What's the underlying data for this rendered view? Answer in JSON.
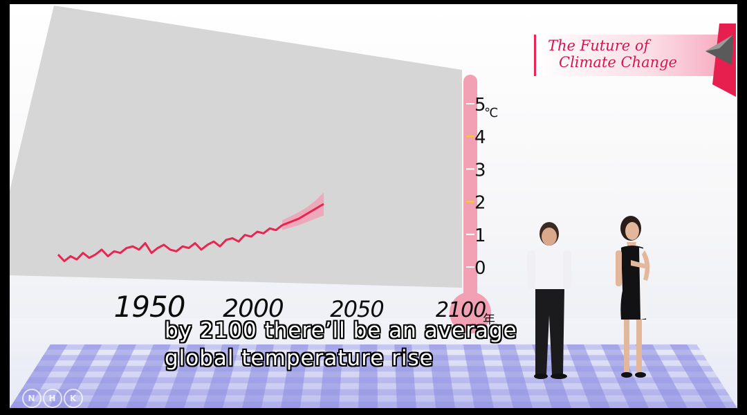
{
  "banner": {
    "title_line1": "The Future of",
    "title_line2": "Climate Change"
  },
  "subtitle": {
    "line1": "by 2100 there’ll be an average",
    "line2": "global temperature rise"
  },
  "logo": {
    "letters": [
      "N",
      "H",
      "K"
    ]
  },
  "colors": {
    "series": "#e8244f",
    "band": "#f39ab0",
    "panel": "#d6d6d6",
    "thermometer": "#f2a0b4",
    "tick_highlight": "#f2d600"
  },
  "chart_data": {
    "type": "line",
    "title": "",
    "xlabel": "",
    "ylabel": "",
    "x_ticks": [
      "1950",
      "2000",
      "2050",
      "2100"
    ],
    "x_unit": "年",
    "y_ticks": [
      "0",
      "1",
      "2",
      "3",
      "4",
      "5"
    ],
    "y_unit": "℃",
    "xlim": [
      1900,
      2100
    ],
    "ylim": [
      0,
      5
    ],
    "highlighted_y_ticks": [
      2,
      4
    ],
    "series": [
      {
        "x": [
          1906,
          1909,
          1912,
          1915,
          1918,
          1921,
          1924,
          1927,
          1930,
          1933,
          1936,
          1939,
          1942,
          1945,
          1948,
          1951,
          1954,
          1957,
          1960,
          1963,
          1966,
          1969,
          1972,
          1975,
          1978,
          1981,
          1984,
          1987,
          1990,
          1993,
          1996,
          1999,
          2002,
          2005,
          2008,
          2011,
          2014
        ],
        "y": [
          0.55,
          0.35,
          0.5,
          0.4,
          0.6,
          0.45,
          0.55,
          0.7,
          0.5,
          0.65,
          0.6,
          0.75,
          0.8,
          0.7,
          0.9,
          0.6,
          0.75,
          0.85,
          0.7,
          0.65,
          0.8,
          0.75,
          0.9,
          0.7,
          0.85,
          0.95,
          0.8,
          1.0,
          1.05,
          0.95,
          1.15,
          1.1,
          1.25,
          1.2,
          1.35,
          1.3,
          1.45
        ]
      },
      {
        "x": [
          2014,
          2018,
          2022,
          2026,
          2030,
          2034
        ],
        "y": [
          1.45,
          1.55,
          1.65,
          1.8,
          1.95,
          2.1
        ],
        "band_low": [
          1.3,
          1.38,
          1.45,
          1.55,
          1.65,
          1.75
        ],
        "band_high": [
          1.6,
          1.72,
          1.85,
          2.0,
          2.2,
          2.45
        ]
      }
    ]
  }
}
